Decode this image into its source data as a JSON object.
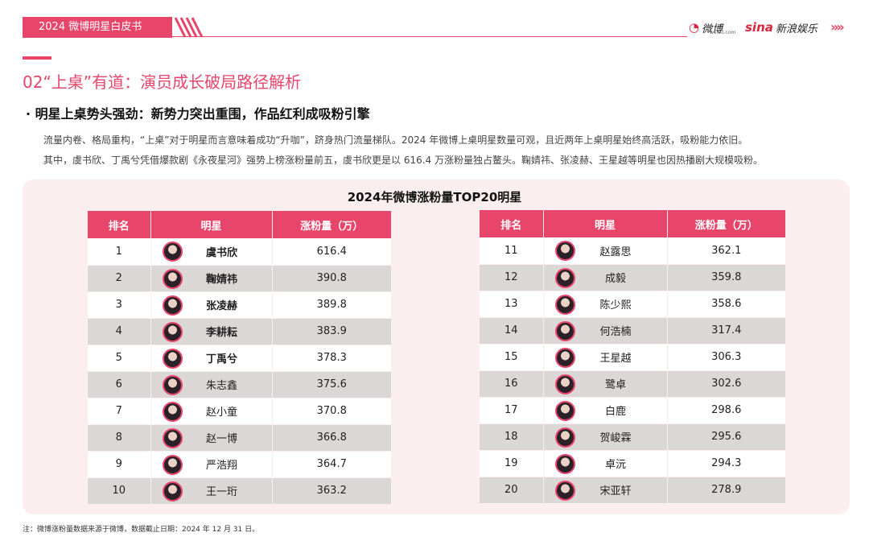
{
  "header": {
    "tag": "2024 微博明星白皮书",
    "weibo_logo": "微博",
    "weibo_sub": "weibo.com",
    "sina_logo": "sina",
    "sina_text": "新浪娱乐",
    "chevron": "»»",
    "accent_color": "#e8456b"
  },
  "section": {
    "title": "02“上桌”有道：演员成长破局路径解析",
    "subheading": "· 明星上桌势头强劲：新势力突出重围，作品红利成吸粉引擎",
    "para1": "流量内卷、格局重构，“上桌”对于明星而言意味着成功“升咖”，跻身热门流量梯队。2024 年微博上桌明星数量可观，且近两年上桌明星始终高活跃，吸粉能力依旧。",
    "para2": "其中，虞书欣、丁禹兮凭借爆款剧《永夜星河》强势上榜涨粉量前五，虞书欣更是以 616.4 万涨粉量独占鳌头。鞠婧祎、张凌赫、王星越等明星也因热播剧大规模吸粉。"
  },
  "table": {
    "title": "2024年微博涨粉量TOP20明星",
    "headers": [
      "排名",
      "明星",
      "涨粉量（万）"
    ],
    "left_rows": [
      {
        "rank": "1",
        "name": "虞书欣",
        "value": "616.4",
        "bold": true
      },
      {
        "rank": "2",
        "name": "鞠婧祎",
        "value": "390.8",
        "bold": true
      },
      {
        "rank": "3",
        "name": "张凌赫",
        "value": "389.8",
        "bold": true
      },
      {
        "rank": "4",
        "name": "李耕耘",
        "value": "383.9",
        "bold": true
      },
      {
        "rank": "5",
        "name": "丁禹兮",
        "value": "378.3",
        "bold": true
      },
      {
        "rank": "6",
        "name": "朱志鑫",
        "value": "375.6",
        "bold": false
      },
      {
        "rank": "7",
        "name": "赵小童",
        "value": "370.8",
        "bold": false
      },
      {
        "rank": "8",
        "name": "赵一博",
        "value": "366.8",
        "bold": false
      },
      {
        "rank": "9",
        "name": "严浩翔",
        "value": "364.7",
        "bold": false
      },
      {
        "rank": "10",
        "name": "王一珩",
        "value": "363.2",
        "bold": false
      }
    ],
    "right_rows": [
      {
        "rank": "11",
        "name": "赵露思",
        "value": "362.1"
      },
      {
        "rank": "12",
        "name": "成毅",
        "value": "359.8"
      },
      {
        "rank": "13",
        "name": "陈少熙",
        "value": "358.6"
      },
      {
        "rank": "14",
        "name": "何浩楠",
        "value": "317.4"
      },
      {
        "rank": "15",
        "name": "王星越",
        "value": "306.3"
      },
      {
        "rank": "16",
        "name": "鹭卓",
        "value": "302.6"
      },
      {
        "rank": "17",
        "name": "白鹿",
        "value": "298.6"
      },
      {
        "rank": "18",
        "name": "贺峻霖",
        "value": "295.6"
      },
      {
        "rank": "19",
        "name": "卓沅",
        "value": "294.3"
      },
      {
        "rank": "20",
        "name": "宋亚轩",
        "value": "278.9"
      }
    ]
  },
  "footnote": "注：微博涨粉量数据来源于微博，数据截止日期：2024 年 12 月 31 日。"
}
